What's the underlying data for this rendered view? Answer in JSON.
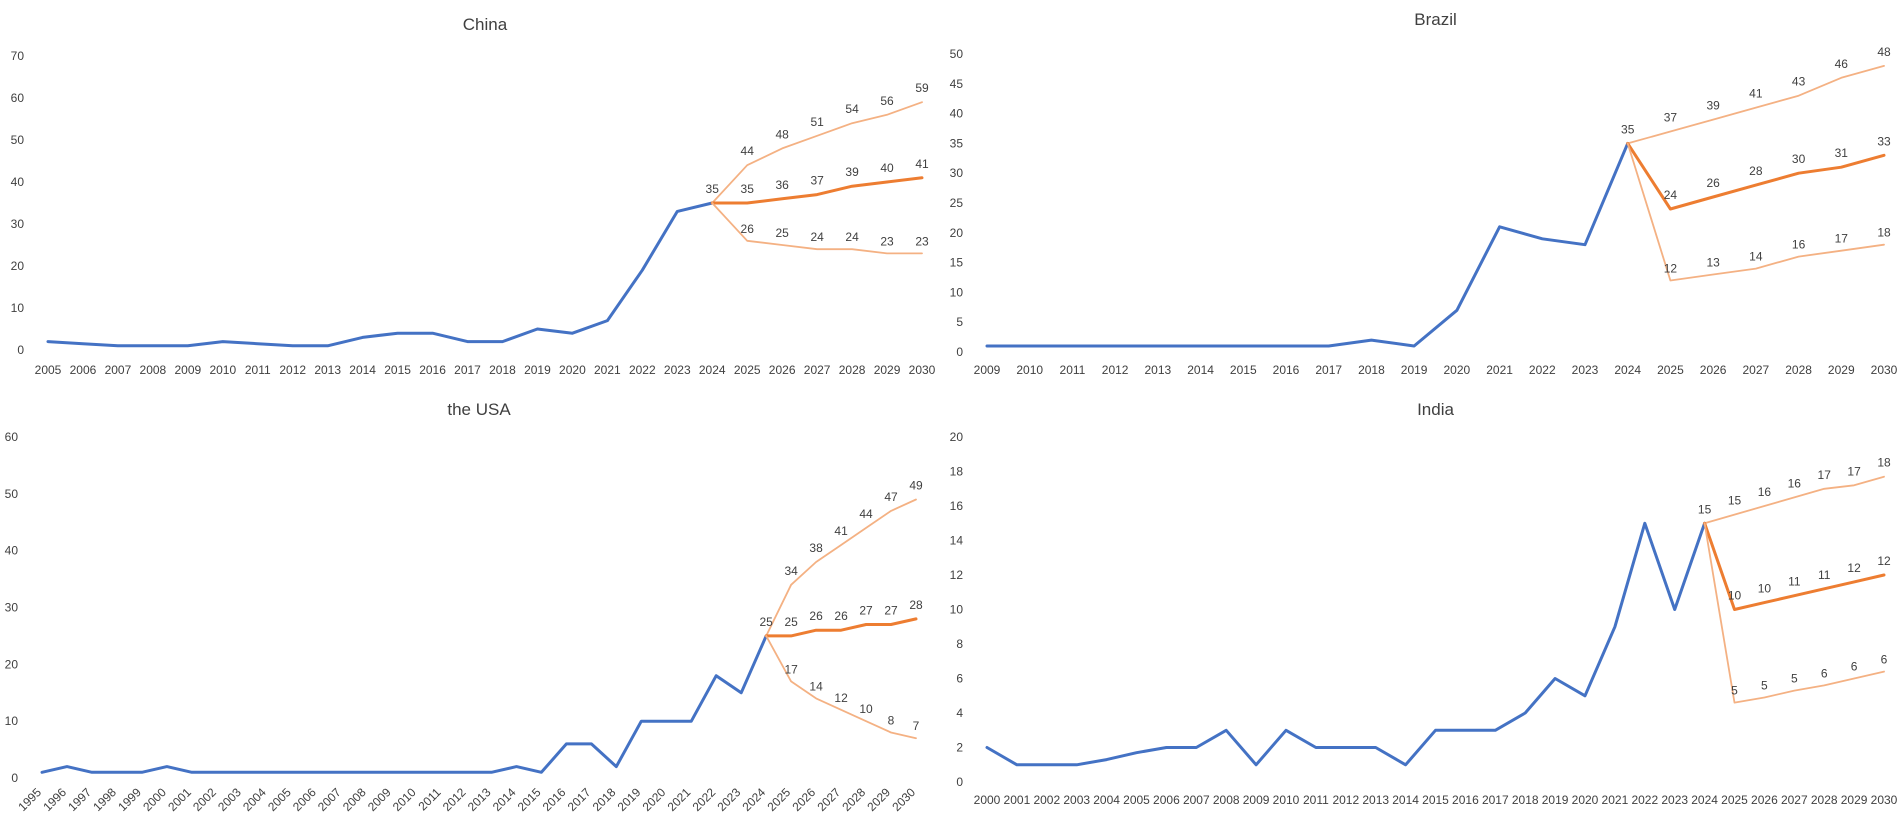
{
  "chart_data": [
    {
      "type": "line",
      "title": "China",
      "ylim": [
        0,
        70
      ],
      "yticks": [
        0,
        10,
        20,
        30,
        40,
        50,
        60,
        70
      ],
      "x": [
        "2005",
        "2006",
        "2007",
        "2008",
        "2009",
        "2010",
        "2011",
        "2012",
        "2013",
        "2014",
        "2015",
        "2016",
        "2017",
        "2018",
        "2019",
        "2020",
        "2021",
        "2022",
        "2023",
        "2024",
        "2025",
        "2026",
        "2027",
        "2028",
        "2029",
        "2030"
      ],
      "grid": false,
      "legend": "none",
      "series": [
        {
          "role": "historical",
          "color": "#4472C4",
          "x": [
            "2005",
            "2006",
            "2007",
            "2008",
            "2009",
            "2010",
            "2011",
            "2012",
            "2013",
            "2014",
            "2015",
            "2016",
            "2017",
            "2018",
            "2019",
            "2020",
            "2021",
            "2022",
            "2023",
            "2024"
          ],
          "values": [
            2,
            1.5,
            1,
            1,
            1,
            2,
            1.5,
            1,
            1,
            3,
            4,
            4,
            2,
            2,
            5,
            4,
            7,
            19,
            33,
            35
          ]
        },
        {
          "role": "forecast-high",
          "color": "#F4B183",
          "x": [
            "2024",
            "2025",
            "2026",
            "2027",
            "2028",
            "2029",
            "2030"
          ],
          "values": [
            35,
            44,
            48,
            51,
            54,
            56,
            59
          ],
          "labels": [
            "35",
            "44",
            "48",
            "51",
            "54",
            "56",
            "59"
          ]
        },
        {
          "role": "forecast-mid",
          "color": "#ED7D31",
          "x": [
            "2024",
            "2025",
            "2026",
            "2027",
            "2028",
            "2029",
            "2030"
          ],
          "values": [
            35,
            35,
            36,
            37,
            39,
            40,
            41
          ],
          "labels": [
            "",
            "35",
            "36",
            "37",
            "39",
            "40",
            "41"
          ]
        },
        {
          "role": "forecast-low",
          "color": "#F4B183",
          "x": [
            "2024",
            "2025",
            "2026",
            "2027",
            "2028",
            "2029",
            "2030"
          ],
          "values": [
            35,
            26,
            25,
            24,
            24,
            23,
            23
          ],
          "labels": [
            "",
            "26",
            "25",
            "24",
            "24",
            "23",
            "23"
          ]
        }
      ]
    },
    {
      "type": "line",
      "title": "Brazil",
      "ylim": [
        0,
        50
      ],
      "yticks": [
        0,
        5,
        10,
        15,
        20,
        25,
        30,
        35,
        40,
        45,
        50
      ],
      "x": [
        "2009",
        "2010",
        "2011",
        "2012",
        "2013",
        "2014",
        "2015",
        "2016",
        "2017",
        "2018",
        "2019",
        "2020",
        "2021",
        "2022",
        "2023",
        "2024",
        "2025",
        "2026",
        "2027",
        "2028",
        "2029",
        "2030"
      ],
      "grid": false,
      "legend": "none",
      "series": [
        {
          "role": "historical",
          "color": "#4472C4",
          "x": [
            "2009",
            "2010",
            "2011",
            "2012",
            "2013",
            "2014",
            "2015",
            "2016",
            "2017",
            "2018",
            "2019",
            "2020",
            "2021",
            "2022",
            "2023",
            "2024"
          ],
          "values": [
            1,
            1,
            1,
            1,
            1,
            1,
            1,
            1,
            1,
            2,
            1,
            7,
            21,
            19,
            18,
            35
          ]
        },
        {
          "role": "forecast-high",
          "color": "#F4B183",
          "x": [
            "2024",
            "2025",
            "2026",
            "2027",
            "2028",
            "2029",
            "2030"
          ],
          "values": [
            35,
            37,
            39,
            41,
            43,
            46,
            48
          ],
          "labels": [
            "35",
            "37",
            "39",
            "41",
            "43",
            "46",
            "48"
          ]
        },
        {
          "role": "forecast-mid",
          "color": "#ED7D31",
          "x": [
            "2024",
            "2025",
            "2026",
            "2027",
            "2028",
            "2029",
            "2030"
          ],
          "values": [
            35,
            24,
            26,
            28,
            30,
            31,
            33
          ],
          "labels": [
            "",
            "24",
            "26",
            "28",
            "30",
            "31",
            "33"
          ]
        },
        {
          "role": "forecast-low",
          "color": "#F4B183",
          "x": [
            "2024",
            "2025",
            "2026",
            "2027",
            "2028",
            "2029",
            "2030"
          ],
          "values": [
            35,
            12,
            13,
            14,
            16,
            17,
            18
          ],
          "labels": [
            "",
            "12",
            "13",
            "14",
            "16",
            "17",
            "18"
          ]
        }
      ]
    },
    {
      "type": "line",
      "title": "the USA",
      "ylim": [
        0,
        60
      ],
      "yticks": [
        0,
        10,
        20,
        30,
        40,
        50,
        60
      ],
      "x": [
        "1995",
        "1996",
        "1997",
        "1998",
        "1999",
        "2000",
        "2001",
        "2002",
        "2003",
        "2004",
        "2005",
        "2006",
        "2007",
        "2008",
        "2009",
        "2010",
        "2011",
        "2012",
        "2013",
        "2014",
        "2015",
        "2016",
        "2017",
        "2018",
        "2019",
        "2020",
        "2021",
        "2022",
        "2023",
        "2024",
        "2025",
        "2026",
        "2027",
        "2028",
        "2029",
        "2030"
      ],
      "xtick_rotate": true,
      "grid": false,
      "legend": "none",
      "series": [
        {
          "role": "historical",
          "color": "#4472C4",
          "x": [
            "1995",
            "1996",
            "1997",
            "1998",
            "1999",
            "2000",
            "2001",
            "2002",
            "2003",
            "2004",
            "2005",
            "2006",
            "2007",
            "2008",
            "2009",
            "2010",
            "2011",
            "2012",
            "2013",
            "2014",
            "2015",
            "2016",
            "2017",
            "2018",
            "2019",
            "2020",
            "2021",
            "2022",
            "2023",
            "2024"
          ],
          "values": [
            1,
            2,
            1,
            1,
            1,
            2,
            1,
            1,
            1,
            1,
            1,
            1,
            1,
            1,
            1,
            1,
            1,
            1,
            1,
            2,
            1,
            6,
            6,
            2,
            10,
            10,
            10,
            18,
            15,
            25
          ]
        },
        {
          "role": "forecast-high",
          "color": "#F4B183",
          "x": [
            "2024",
            "2025",
            "2026",
            "2027",
            "2028",
            "2029",
            "2030"
          ],
          "values": [
            25,
            34,
            38,
            41,
            44,
            47,
            49
          ],
          "labels": [
            "25",
            "34",
            "38",
            "41",
            "44",
            "47",
            "49"
          ]
        },
        {
          "role": "forecast-mid",
          "color": "#ED7D31",
          "x": [
            "2024",
            "2025",
            "2026",
            "2027",
            "2028",
            "2029",
            "2030"
          ],
          "values": [
            25,
            25,
            26,
            26,
            27,
            27,
            28
          ],
          "labels": [
            "",
            "25",
            "26",
            "26",
            "27",
            "27",
            "28"
          ]
        },
        {
          "role": "forecast-low",
          "color": "#F4B183",
          "x": [
            "2024",
            "2025",
            "2026",
            "2027",
            "2028",
            "2029",
            "2030"
          ],
          "values": [
            25,
            17,
            14,
            12,
            10,
            8,
            7
          ],
          "labels": [
            "",
            "17",
            "14",
            "12",
            "10",
            "8",
            "7"
          ]
        }
      ]
    },
    {
      "type": "line",
      "title": "India",
      "ylim": [
        0,
        20
      ],
      "yticks": [
        0,
        2,
        4,
        6,
        8,
        10,
        12,
        14,
        16,
        18,
        20
      ],
      "x": [
        "2000",
        "2001",
        "2002",
        "2003",
        "2004",
        "2005",
        "2006",
        "2007",
        "2008",
        "2009",
        "2010",
        "2011",
        "2012",
        "2013",
        "2014",
        "2015",
        "2016",
        "2017",
        "2018",
        "2019",
        "2020",
        "2021",
        "2022",
        "2023",
        "2024",
        "2025",
        "2026",
        "2027",
        "2028",
        "2029",
        "2030"
      ],
      "grid": false,
      "legend": "none",
      "series": [
        {
          "role": "historical",
          "color": "#4472C4",
          "x": [
            "2000",
            "2001",
            "2002",
            "2003",
            "2004",
            "2005",
            "2006",
            "2007",
            "2008",
            "2009",
            "2010",
            "2011",
            "2012",
            "2013",
            "2014",
            "2015",
            "2016",
            "2017",
            "2018",
            "2019",
            "2020",
            "2021",
            "2022",
            "2023",
            "2024"
          ],
          "values": [
            2,
            1,
            1,
            1,
            1.3,
            1.7,
            2,
            2,
            3,
            1,
            3,
            2,
            2,
            2,
            1,
            3,
            3,
            3,
            4,
            6,
            5,
            9,
            15,
            10,
            15
          ]
        },
        {
          "role": "forecast-high",
          "color": "#F4B183",
          "x": [
            "2024",
            "2025",
            "2026",
            "2027",
            "2028",
            "2029",
            "2030"
          ],
          "values": [
            15,
            15.5,
            16,
            16.5,
            17,
            17.2,
            17.7
          ],
          "labels": [
            "15",
            "15",
            "16",
            "16",
            "17",
            "17",
            "18"
          ]
        },
        {
          "role": "forecast-mid",
          "color": "#ED7D31",
          "x": [
            "2024",
            "2025",
            "2026",
            "2027",
            "2028",
            "2029",
            "2030"
          ],
          "values": [
            15,
            10,
            10.4,
            10.8,
            11.2,
            11.6,
            12
          ],
          "labels": [
            "",
            "10",
            "10",
            "11",
            "11",
            "12",
            "12"
          ]
        },
        {
          "role": "forecast-low",
          "color": "#F4B183",
          "x": [
            "2024",
            "2025",
            "2026",
            "2027",
            "2028",
            "2029",
            "2030"
          ],
          "values": [
            15,
            4.6,
            4.9,
            5.3,
            5.6,
            6,
            6.4
          ],
          "labels": [
            "",
            "5",
            "5",
            "5",
            "6",
            "6",
            "6"
          ]
        }
      ]
    }
  ]
}
